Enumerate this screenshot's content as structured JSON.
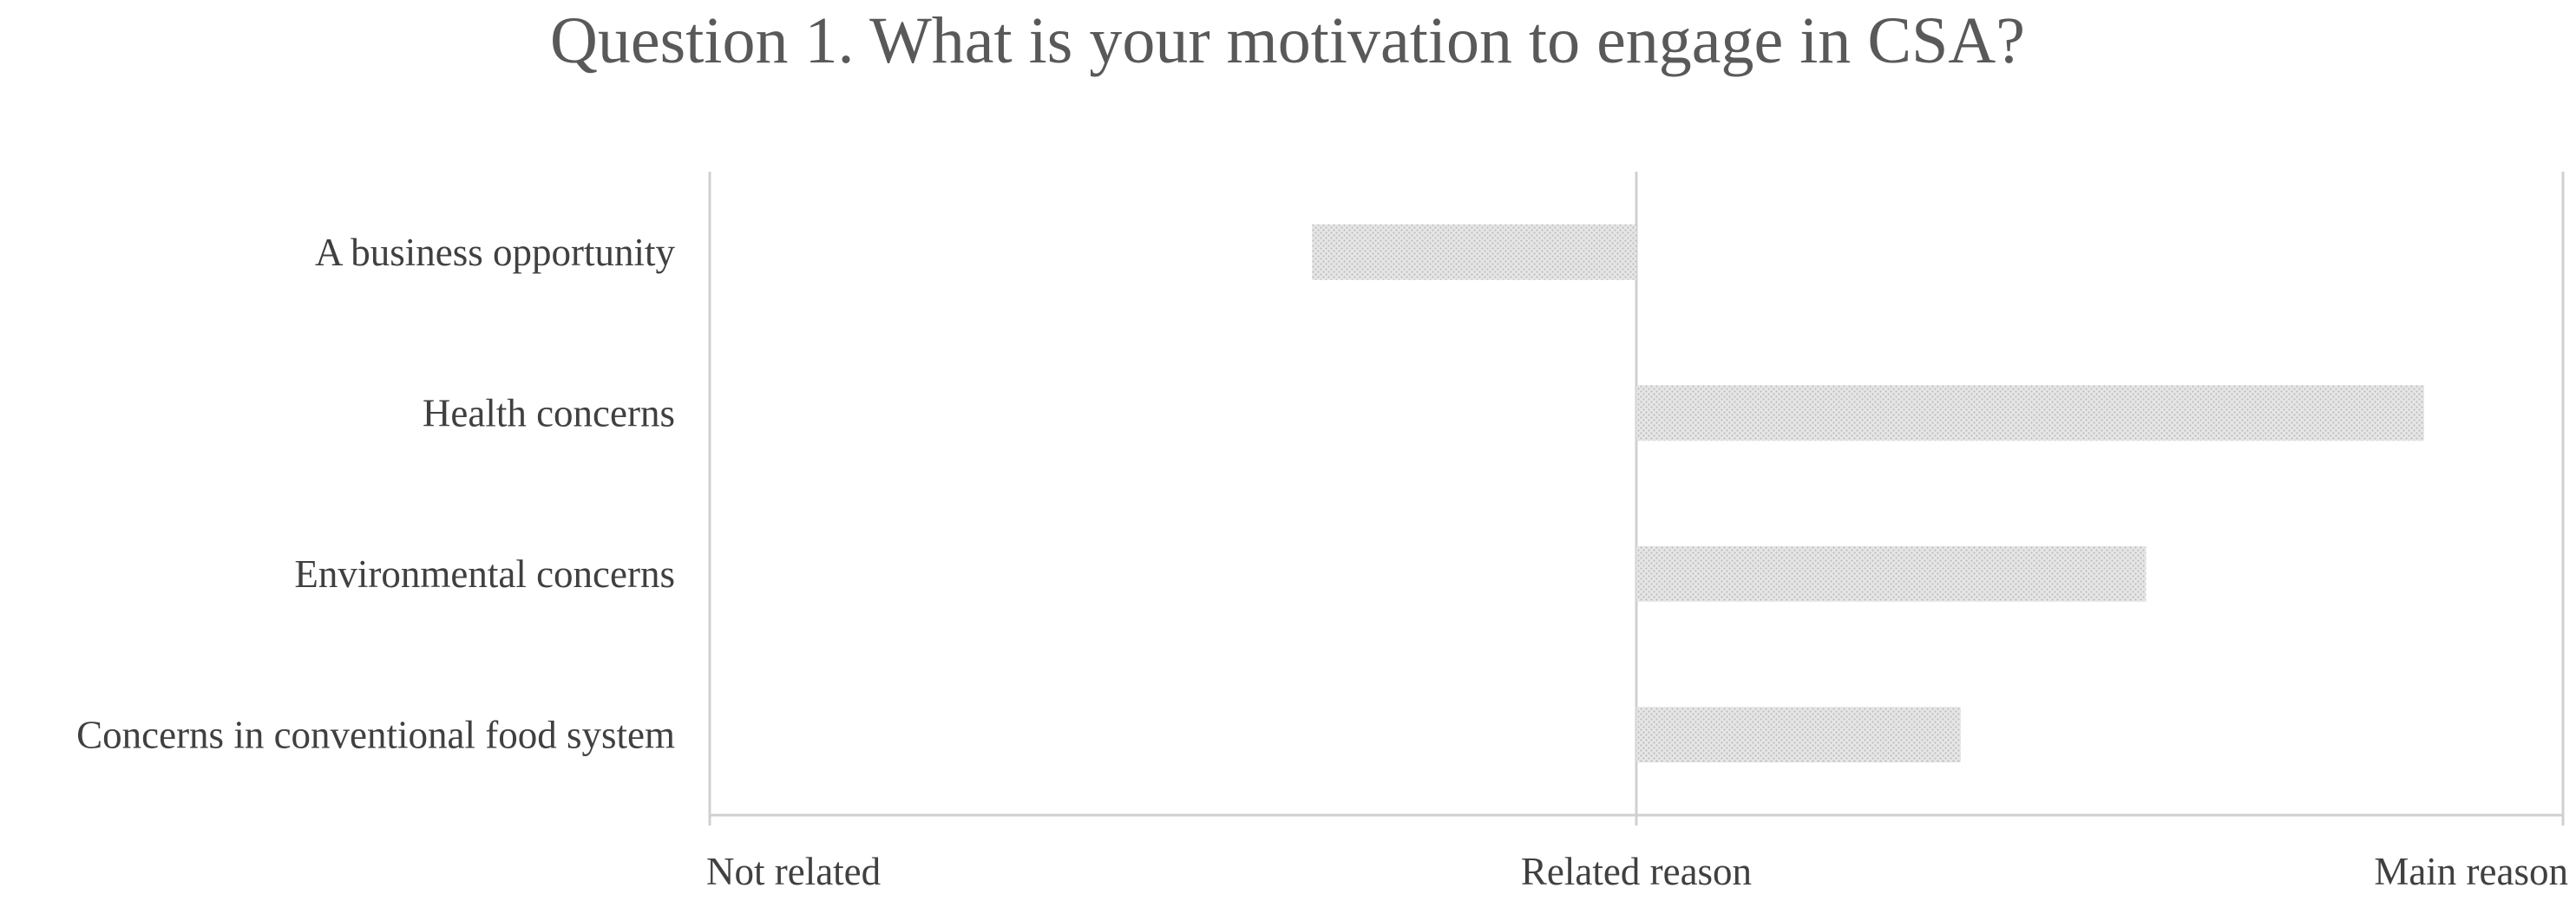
{
  "chart_data": {
    "type": "bar",
    "orientation": "horizontal",
    "title": "Question 1. What is your motivation to engage in CSA?",
    "categories": [
      "A business opportunity",
      "Health concerns",
      "Environmental concerns",
      "Concerns in conventional food system"
    ],
    "values": [
      -0.35,
      0.85,
      0.55,
      0.35
    ],
    "xlim": [
      -1,
      1
    ],
    "xticks": [
      {
        "value": -1,
        "label": "Not related"
      },
      {
        "value": 0,
        "label": "Related reason"
      },
      {
        "value": 1,
        "label": "Main reason"
      }
    ],
    "xlabel": "",
    "ylabel": "",
    "grid": false,
    "legend": "none",
    "colors": {
      "bar_fill": "#e6e6e6",
      "bar_dot": "#bdbdbd",
      "axis": "#d0d0d0",
      "title": "#595959",
      "text": "#404040"
    }
  }
}
